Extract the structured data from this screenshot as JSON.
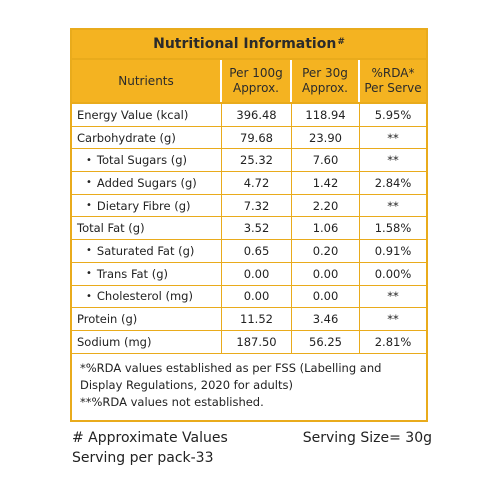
{
  "title": "Nutritional Information",
  "title_mark": "#",
  "columns": {
    "nutrients": "Nutrients",
    "per100g_line1": "Per 100g",
    "per100g_line2": "Approx.",
    "per30g_line1": "Per 30g",
    "per30g_line2": "Approx.",
    "rda_line1": "%RDA*",
    "rda_line2": "Per Serve"
  },
  "rows": [
    {
      "name": "Energy Value (kcal)",
      "indent": false,
      "per100g": "396.48",
      "per30g": "118.94",
      "rda": "5.95%"
    },
    {
      "name": "Carbohydrate (g)",
      "indent": false,
      "per100g": "79.68",
      "per30g": "23.90",
      "rda": "**"
    },
    {
      "name": "Total Sugars (g)",
      "indent": true,
      "per100g": "25.32",
      "per30g": "7.60",
      "rda": "**"
    },
    {
      "name": "Added Sugars (g)",
      "indent": true,
      "per100g": "4.72",
      "per30g": "1.42",
      "rda": "2.84%"
    },
    {
      "name": "Dietary Fibre (g)",
      "indent": true,
      "per100g": "7.32",
      "per30g": "2.20",
      "rda": "**"
    },
    {
      "name": "Total Fat (g)",
      "indent": false,
      "per100g": "3.52",
      "per30g": "1.06",
      "rda": "1.58%"
    },
    {
      "name": "Saturated Fat (g)",
      "indent": true,
      "per100g": "0.65",
      "per30g": "0.20",
      "rda": "0.91%"
    },
    {
      "name": "Trans Fat (g)",
      "indent": true,
      "per100g": "0.00",
      "per30g": "0.00",
      "rda": "0.00%"
    },
    {
      "name": "Cholesterol (mg)",
      "indent": true,
      "per100g": "0.00",
      "per30g": "0.00",
      "rda": "**"
    },
    {
      "name": "Protein (g)",
      "indent": false,
      "per100g": "11.52",
      "per30g": "3.46",
      "rda": "**"
    },
    {
      "name": "Sodium (mg)",
      "indent": false,
      "per100g": "187.50",
      "per30g": "56.25",
      "rda": "2.81%"
    }
  ],
  "notes": [
    "*%RDA values established as per FSS (Labelling and Display Regulations, 2020 for adults)",
    "**%RDA values not established."
  ],
  "footer": {
    "approx_note": "# Approximate Values",
    "serving_size": "Serving Size= 30g",
    "servings_per_pack": "Serving per pack-33"
  },
  "colors": {
    "header_bg": "#f4b321",
    "border": "#e9ab1c"
  }
}
